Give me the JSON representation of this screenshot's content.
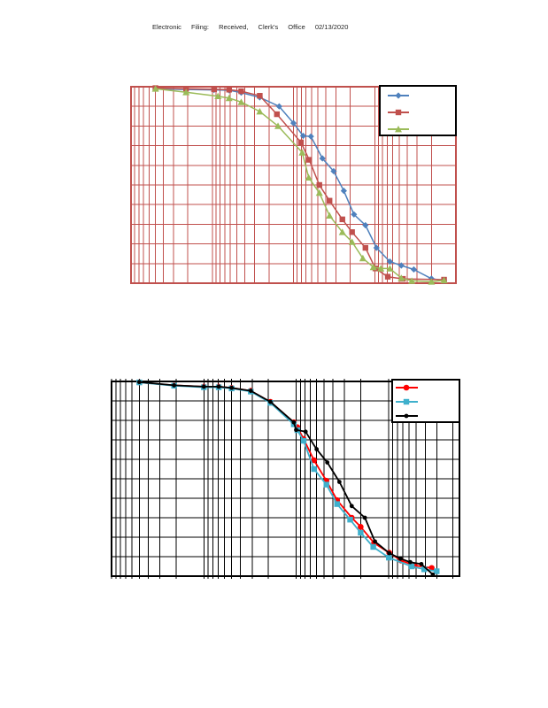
{
  "header": {
    "stamp": "Electronic Filing: Received, Clerk's Office 02/13/2020"
  },
  "page": {
    "background": "#FFFFFF"
  },
  "chart_data": [
    {
      "type": "line",
      "name": "top-grain-size-chart",
      "x_axis": {
        "scale": "log",
        "direction": "descending",
        "max": 100,
        "min": 0.01,
        "tick_labels_visible": false,
        "minor_gridlines": true,
        "note": "no axis tick labels visible; x values estimated from log-decade gridlines"
      },
      "y_axis": {
        "min": 0,
        "max": 100,
        "gridline_step": 10,
        "tick_labels_visible": false
      },
      "grid_color": "#C0504D",
      "border_color": "#C0504D",
      "legend": {
        "position": "top-right",
        "border_color": "#000000",
        "background": "#FFFFFF",
        "labels_visible": false,
        "entries": [
          {
            "label": "",
            "color": "#4F81BD",
            "marker": "diamond"
          },
          {
            "label": "",
            "color": "#C0504D",
            "marker": "square"
          },
          {
            "label": "",
            "color": "#9BBB59",
            "marker": "triangle"
          }
        ]
      },
      "series": [
        {
          "name": "blue-diamond-series",
          "color": "#4F81BD",
          "marker": "diamond",
          "points": [
            [
              50,
              99
            ],
            [
              21,
              98.6
            ],
            [
              9.5,
              98.4
            ],
            [
              6.2,
              98.2
            ],
            [
              4.4,
              97
            ],
            [
              2.6,
              94.6
            ],
            [
              1.5,
              90
            ],
            [
              1.0,
              81.5
            ],
            [
              0.76,
              75
            ],
            [
              0.61,
              74.7
            ],
            [
              0.44,
              63.5
            ],
            [
              0.32,
              57
            ],
            [
              0.24,
              47
            ],
            [
              0.18,
              35
            ],
            [
              0.13,
              29.5
            ],
            [
              0.095,
              18
            ],
            [
              0.065,
              11
            ],
            [
              0.047,
              9
            ],
            [
              0.033,
              7
            ],
            [
              0.02,
              2.3
            ],
            [
              0.014,
              1.3
            ]
          ]
        },
        {
          "name": "red-square-series",
          "color": "#C0504D",
          "marker": "square",
          "points": [
            [
              50,
              99.3
            ],
            [
              21,
              99
            ],
            [
              9.5,
              98.7
            ],
            [
              6.2,
              98.5
            ],
            [
              4.4,
              97.7
            ],
            [
              2.6,
              95.4
            ],
            [
              1.6,
              86
            ],
            [
              0.81,
              71.7
            ],
            [
              0.64,
              62.8
            ],
            [
              0.48,
              50
            ],
            [
              0.36,
              42
            ],
            [
              0.25,
              32.5
            ],
            [
              0.19,
              26
            ],
            [
              0.13,
              18
            ],
            [
              0.098,
              7.5
            ],
            [
              0.069,
              3.3
            ],
            [
              0.045,
              2.2
            ],
            [
              0.014,
              1.8
            ]
          ]
        },
        {
          "name": "green-triangle-series",
          "color": "#9BBB59",
          "marker": "triangle",
          "points": [
            [
              50,
              99
            ],
            [
              21,
              97.2
            ],
            [
              8.5,
              95.2
            ],
            [
              6.2,
              94.2
            ],
            [
              4.4,
              92.2
            ],
            [
              2.6,
              87.4
            ],
            [
              1.55,
              80
            ],
            [
              0.78,
              66.5
            ],
            [
              0.65,
              53.8
            ],
            [
              0.48,
              46
            ],
            [
              0.36,
              34.4
            ],
            [
              0.25,
              26
            ],
            [
              0.19,
              21
            ],
            [
              0.14,
              12.7
            ],
            [
              0.104,
              8.2
            ],
            [
              0.084,
              7.5
            ],
            [
              0.065,
              7.5
            ],
            [
              0.047,
              2.6
            ],
            [
              0.035,
              1.2
            ],
            [
              0.02,
              0.8
            ],
            [
              0.014,
              1.5
            ]
          ]
        }
      ]
    },
    {
      "type": "line",
      "name": "bottom-grain-size-chart",
      "x_axis": {
        "scale": "log",
        "direction": "descending",
        "max": 100,
        "min": 0.017,
        "tick_labels_visible": false,
        "minor_gridlines": true,
        "note": "no axis tick labels visible; x values estimated from log-decade gridlines"
      },
      "y_axis": {
        "min": 0,
        "max": 100,
        "gridline_step": 10,
        "tick_labels_visible": false
      },
      "grid_color": "#000000",
      "border_color": "#000000",
      "legend": {
        "position": "top-right",
        "border_color": "#000000",
        "background": "#FFFFFF",
        "labels_visible": false,
        "entries": [
          {
            "label": "",
            "color": "#FF0000",
            "marker": "circle"
          },
          {
            "label": "",
            "color": "#3FB0CC",
            "marker": "square"
          },
          {
            "label": "",
            "color": "#000000",
            "marker": "circle-small"
          }
        ]
      },
      "series": [
        {
          "name": "red-circle-series",
          "color": "#FF0000",
          "marker": "circle",
          "points": [
            [
              50,
              99.5
            ],
            [
              21,
              98
            ],
            [
              10,
              97.3
            ],
            [
              6.9,
              97.3
            ],
            [
              5,
              96.7
            ],
            [
              3.1,
              95.2
            ],
            [
              1.9,
              89.5
            ],
            [
              1.06,
              79
            ],
            [
              0.97,
              76.5
            ],
            [
              0.83,
              70.5
            ],
            [
              0.64,
              59.5
            ],
            [
              0.47,
              49
            ],
            [
              0.36,
              39
            ],
            [
              0.25,
              30
            ],
            [
              0.2,
              25.3
            ],
            [
              0.143,
              17
            ],
            [
              0.098,
              12
            ],
            [
              0.073,
              8
            ],
            [
              0.052,
              5.5
            ],
            [
              0.034,
              4.2
            ]
          ]
        },
        {
          "name": "cyan-square-series",
          "color": "#3FB0CC",
          "marker": "square",
          "points": [
            [
              50,
              99.5
            ],
            [
              21,
              97.8
            ],
            [
              10,
              97
            ],
            [
              6.9,
              97
            ],
            [
              5,
              96.4
            ],
            [
              3.1,
              94.8
            ],
            [
              1.9,
              89
            ],
            [
              1.06,
              78
            ],
            [
              0.97,
              75
            ],
            [
              0.83,
              69.5
            ],
            [
              0.64,
              55
            ],
            [
              0.47,
              47
            ],
            [
              0.36,
              37
            ],
            [
              0.26,
              29
            ],
            [
              0.2,
              22.3
            ],
            [
              0.146,
              15
            ],
            [
              0.099,
              9.5
            ],
            [
              0.056,
              5
            ],
            [
              0.041,
              3.5
            ],
            [
              0.03,
              2.5
            ]
          ]
        },
        {
          "name": "black-dot-series",
          "color": "#000000",
          "marker": "circle-small",
          "points": [
            [
              50,
              99.7
            ],
            [
              21,
              98
            ],
            [
              10,
              97.3
            ],
            [
              6.9,
              97.3
            ],
            [
              5,
              96.7
            ],
            [
              3.1,
              95.2
            ],
            [
              1.9,
              89.5
            ],
            [
              1.06,
              79
            ],
            [
              1.0,
              75.1
            ],
            [
              0.79,
              74.2
            ],
            [
              0.6,
              65.2
            ],
            [
              0.46,
              58.4
            ],
            [
              0.34,
              48.4
            ],
            [
              0.25,
              36
            ],
            [
              0.18,
              30
            ],
            [
              0.14,
              17.8
            ],
            [
              0.098,
              11.8
            ],
            [
              0.074,
              9
            ],
            [
              0.058,
              7.2
            ],
            [
              0.044,
              6.2
            ],
            [
              0.033,
              0.8
            ]
          ]
        }
      ]
    }
  ]
}
